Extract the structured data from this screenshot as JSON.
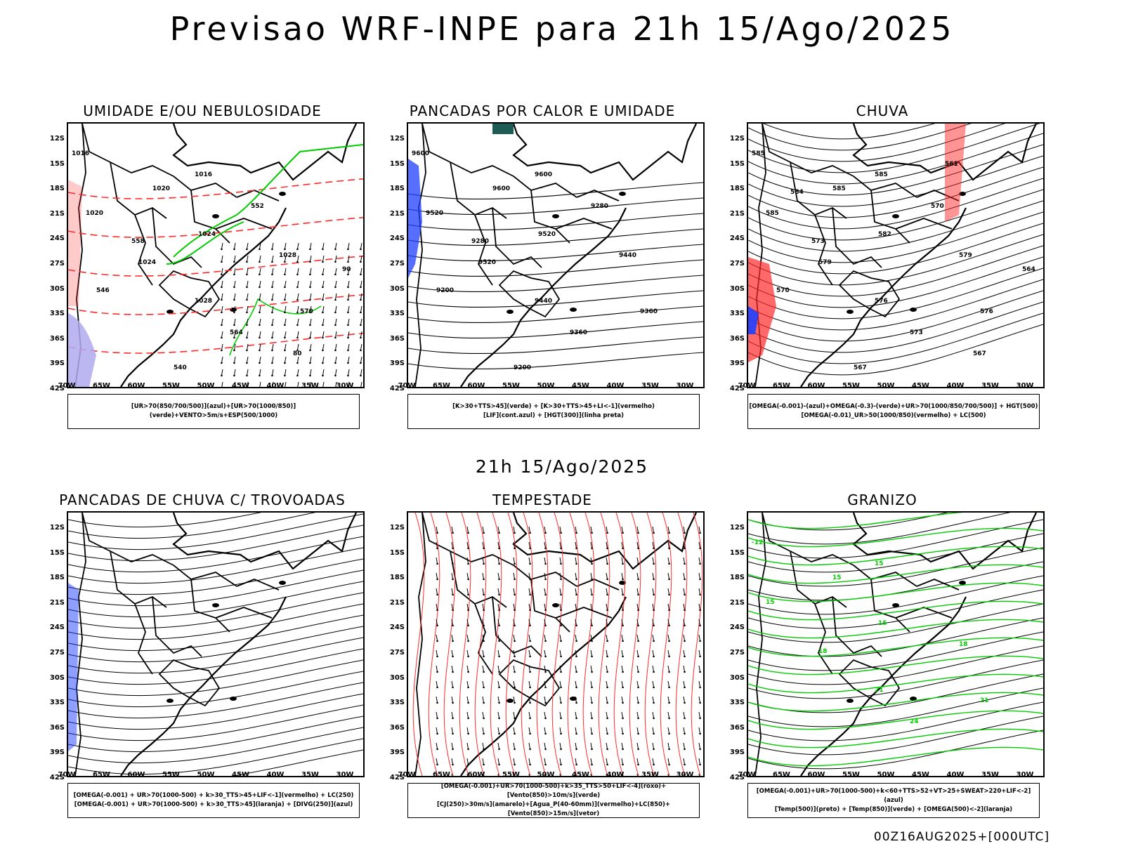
{
  "main_title": "Previsao WRF-INPE  para 21h 15/Ago/2025",
  "mid_title": "21h 15/Ago/2025",
  "footer": "00Z16AUG2025+[000UTC]",
  "lat_labels": [
    "12S",
    "15S",
    "18S",
    "21S",
    "24S",
    "27S",
    "30S",
    "33S",
    "36S",
    "39S",
    "42S"
  ],
  "lon_labels": [
    "70W",
    "65W",
    "60W",
    "55W",
    "50W",
    "45W",
    "40W",
    "35W",
    "30W"
  ],
  "panels": [
    {
      "title": "UMIDADE E/OU NEBULOSIDADE",
      "legend": [
        "[UR>70(850/700/500)](azul)+[UR>70(1000/850)](verde)+VENTO>5m/s+ESP(500/1000)"
      ],
      "labels": [
        "1016",
        "1016",
        "1020",
        "1020",
        "1024",
        "1024",
        "1028",
        "1028",
        "570",
        "564",
        "558",
        "552",
        "546",
        "540",
        "80",
        "90"
      ]
    },
    {
      "title": "PANCADAS POR CALOR E UMIDADE",
      "legend": [
        "[K>30+TTS>45](verde) + [K>30+TTS>45+LI<-1](vermelho)",
        "[LIF](cont.azul) + [HGT(300)](linha preta)"
      ],
      "labels": [
        "9600",
        "9600",
        "9600",
        "9520",
        "9520",
        "9520",
        "9440",
        "9440",
        "9360",
        "9360",
        "9280",
        "9280",
        "9200",
        "9200"
      ]
    },
    {
      "title": "CHUVA",
      "legend": [
        "[OMEGA(-0.001)-(azul)+OMEGA(-0.3)-(verde)+UR>70(1000/850/700/500)] + HGT(500)",
        "[OMEGA(-0.01)_UR>50(1000/850)(vermelho) + LC(500)"
      ],
      "labels": [
        "585",
        "585",
        "585",
        "585",
        "582",
        "579",
        "579",
        "576",
        "576",
        "573",
        "573",
        "570",
        "570",
        "567",
        "567",
        "564",
        "564",
        "561"
      ]
    },
    {
      "title": "PANCADAS DE CHUVA C/ TROVOADAS",
      "legend": [
        "[OMEGA(-0.001) + UR>70(1000-500) + k>30_TTS>45+LIF<-1](vermelho) + LC(250)",
        "[OMEGA(-0.001) + UR>70(1000-500) + k>30_TTS>45](laranja) + [DIVG(250)](azul)"
      ],
      "labels": []
    },
    {
      "title": "TEMPESTADE",
      "legend": [
        "[OMEGA(-0.001)+UR>70(1000-500)+k>35_TTS>50+LIF<-4](roxo)+[Vento(850)>10m/s](verde)",
        "[CJ(250)>30m/s](amarelo)+[Agua_P(40-60mm)](vermelho)+LC(850)+[Vento(850)>15m/s](vetor)"
      ],
      "labels": []
    },
    {
      "title": "GRANIZO",
      "legend": [
        "[OMEGA(-0.001)+UR>70(1000-500)+k<60+TTS>52+VT>25+SWEAT>220+LIF<-2](azul)",
        "[Temp(500)](preto) + [Temp(850)](verde) + [OMEGA(500)<-2](laranja)"
      ],
      "labels": [
        "-12",
        "15",
        "15",
        "15",
        "15",
        "18",
        "18",
        "21",
        "21",
        "24"
      ]
    }
  ],
  "colors": {
    "land_outline": "#000000",
    "green": "#00cc00",
    "red": "#ff2a2a",
    "blue": "#1f3fff",
    "yellow": "#e3d830",
    "lavender": "#b0aaee",
    "teal": "#1d5b55",
    "orange": "#ff8c1a"
  }
}
